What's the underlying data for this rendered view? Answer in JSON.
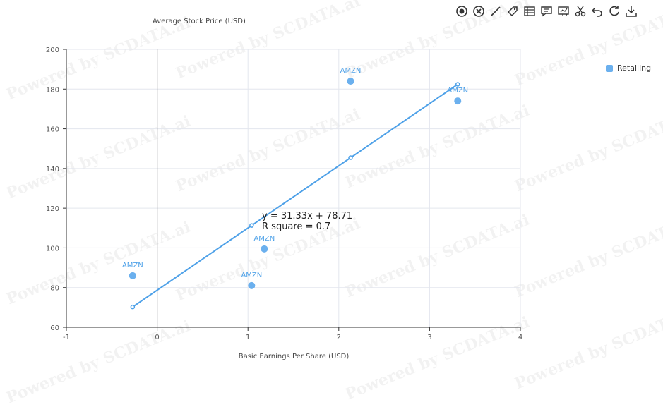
{
  "toolbar": {
    "tools": [
      {
        "name": "mark-point-icon"
      },
      {
        "name": "clear-mark-icon"
      },
      {
        "name": "draw-line-icon"
      },
      {
        "name": "tag-icon"
      },
      {
        "name": "data-view-icon"
      },
      {
        "name": "comment-icon"
      },
      {
        "name": "chart-type-icon"
      },
      {
        "name": "cut-icon"
      },
      {
        "name": "undo-icon"
      },
      {
        "name": "refresh-icon"
      },
      {
        "name": "download-icon"
      }
    ]
  },
  "watermark_text": "Powered by SCDATA.ai",
  "colors": {
    "series": "#4ea1e8",
    "point": "#6bb0ee",
    "axis": "#333333",
    "grid": "#e3e6ee"
  },
  "chart_data": {
    "type": "scatter",
    "ylabel": "Average Stock Price (USD)",
    "xlabel": "Basic Earnings Per Share (USD)",
    "xlim": [
      -1,
      4
    ],
    "ylim": [
      60,
      200
    ],
    "xticks": [
      -1,
      0,
      1,
      2,
      3,
      4
    ],
    "yticks": [
      60,
      80,
      100,
      120,
      140,
      160,
      180,
      200
    ],
    "legend": {
      "position": "top-right"
    },
    "series": [
      {
        "name": "Retailing",
        "points": [
          {
            "x": -0.27,
            "y": 86,
            "label": "AMZN"
          },
          {
            "x": 1.04,
            "y": 81,
            "label": "AMZN"
          },
          {
            "x": 1.18,
            "y": 99.5,
            "label": "AMZN"
          },
          {
            "x": 2.13,
            "y": 184,
            "label": "AMZN"
          },
          {
            "x": 3.31,
            "y": 174,
            "label": "AMZN"
          }
        ]
      }
    ],
    "trendline": {
      "equation": "y = 31.33x + 78.71",
      "r_squared": "R square = 0.7",
      "slope": 31.33,
      "intercept": 78.71,
      "x_points": [
        -0.27,
        1.04,
        2.13,
        3.31
      ]
    }
  }
}
